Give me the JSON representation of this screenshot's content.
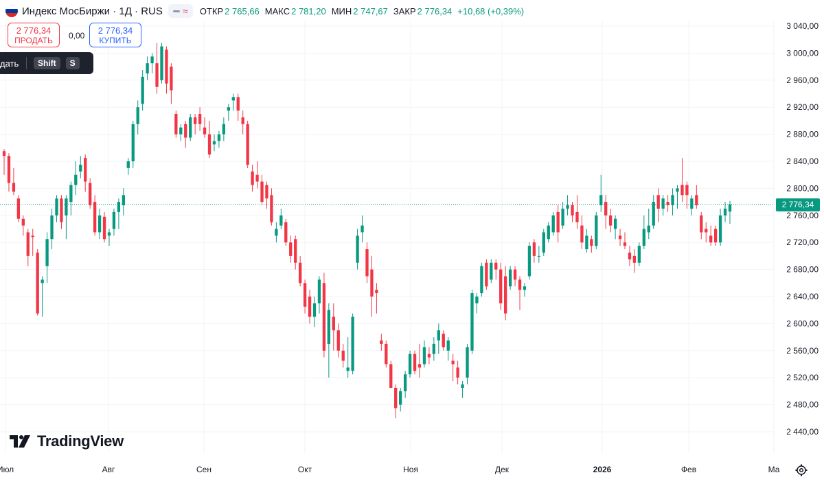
{
  "header": {
    "symbol": "Индекс МосБиржи · 1Д · RUS",
    "open_label": "ОТКР",
    "open_value": "2 765,66",
    "high_label": "МАКС",
    "high_value": "2 781,20",
    "low_label": "МИН",
    "low_value": "2 747,67",
    "close_label": "ЗАКР",
    "close_value": "2 776,34",
    "change": "+10,68 (+0,39%)"
  },
  "trade": {
    "sell_price": "2 776,34",
    "sell_label": "ПРОДАТЬ",
    "spread": "0,00",
    "buy_price": "2 776,34",
    "buy_label": "КУПИТЬ"
  },
  "tooltip": {
    "text": "дать",
    "key1": "Shift",
    "key2": "S"
  },
  "logo_text": "TradingView",
  "last_price_tag": "2 776,34",
  "colors": {
    "up": "#089981",
    "down": "#f23645",
    "grid": "#f0f3fa",
    "axis_text": "#131722",
    "last_price_line": "#089981"
  },
  "icons": [
    "russia-flag-icon",
    "tradingview-logo-icon",
    "settings-gear-icon",
    "chart-style-icon"
  ],
  "chart_data": {
    "type": "candlestick",
    "y_axis_labels": [
      "3 040,00",
      "3 000,00",
      "2 960,00",
      "2 920,00",
      "2 880,00",
      "2 840,00",
      "2 800,00",
      "2 760,00",
      "2 720,00",
      "2 680,00",
      "2 640,00",
      "2 600,00",
      "2 560,00",
      "2 520,00",
      "2 480,00",
      "2 440,00"
    ],
    "y_axis_values": [
      3040,
      3000,
      2960,
      2920,
      2880,
      2840,
      2800,
      2760,
      2720,
      2680,
      2640,
      2600,
      2560,
      2520,
      2480,
      2440
    ],
    "ylim": [
      2400,
      3080
    ],
    "x_axis_labels": [
      "Июл",
      "Авг",
      "Сен",
      "Окт",
      "Ноя",
      "Дек",
      "2026",
      "Фев",
      "Ма"
    ],
    "x_axis_bold": [
      false,
      false,
      false,
      false,
      false,
      false,
      true,
      false,
      false
    ],
    "last_price": 2776.34,
    "candles": [
      {
        "o": 2855,
        "h": 2858,
        "l": 2820,
        "c": 2848
      },
      {
        "o": 2848,
        "h": 2852,
        "l": 2795,
        "c": 2808
      },
      {
        "o": 2808,
        "h": 2830,
        "l": 2790,
        "c": 2795
      },
      {
        "o": 2785,
        "h": 2790,
        "l": 2750,
        "c": 2755
      },
      {
        "o": 2755,
        "h": 2760,
        "l": 2730,
        "c": 2745
      },
      {
        "o": 2735,
        "h": 2740,
        "l": 2685,
        "c": 2700
      },
      {
        "o": 2730,
        "h": 2740,
        "l": 2700,
        "c": 2728
      },
      {
        "o": 2705,
        "h": 2710,
        "l": 2612,
        "c": 2615
      },
      {
        "o": 2660,
        "h": 2670,
        "l": 2610,
        "c": 2665
      },
      {
        "o": 2685,
        "h": 2735,
        "l": 2660,
        "c": 2725
      },
      {
        "o": 2725,
        "h": 2770,
        "l": 2710,
        "c": 2760
      },
      {
        "o": 2760,
        "h": 2790,
        "l": 2750,
        "c": 2785
      },
      {
        "o": 2785,
        "h": 2790,
        "l": 2740,
        "c": 2750
      },
      {
        "o": 2760,
        "h": 2790,
        "l": 2725,
        "c": 2785
      },
      {
        "o": 2780,
        "h": 2810,
        "l": 2760,
        "c": 2805
      },
      {
        "o": 2805,
        "h": 2840,
        "l": 2790,
        "c": 2820
      },
      {
        "o": 2825,
        "h": 2848,
        "l": 2815,
        "c": 2835
      },
      {
        "o": 2845,
        "h": 2850,
        "l": 2795,
        "c": 2810
      },
      {
        "o": 2808,
        "h": 2815,
        "l": 2770,
        "c": 2775
      },
      {
        "o": 2780,
        "h": 2790,
        "l": 2730,
        "c": 2735
      },
      {
        "o": 2735,
        "h": 2770,
        "l": 2725,
        "c": 2760
      },
      {
        "o": 2758,
        "h": 2765,
        "l": 2720,
        "c": 2725
      },
      {
        "o": 2730,
        "h": 2740,
        "l": 2715,
        "c": 2735
      },
      {
        "o": 2740,
        "h": 2770,
        "l": 2730,
        "c": 2765
      },
      {
        "o": 2765,
        "h": 2785,
        "l": 2740,
        "c": 2780
      },
      {
        "o": 2775,
        "h": 2800,
        "l": 2760,
        "c": 2790
      },
      {
        "o": 2830,
        "h": 2845,
        "l": 2820,
        "c": 2840
      },
      {
        "o": 2840,
        "h": 2900,
        "l": 2830,
        "c": 2895
      },
      {
        "o": 2895,
        "h": 2930,
        "l": 2880,
        "c": 2920
      },
      {
        "o": 2925,
        "h": 2975,
        "l": 2915,
        "c": 2965
      },
      {
        "o": 2970,
        "h": 2995,
        "l": 2960,
        "c": 2985
      },
      {
        "o": 2985,
        "h": 3000,
        "l": 2970,
        "c": 2995
      },
      {
        "o": 2985,
        "h": 3015,
        "l": 2940,
        "c": 2950
      },
      {
        "o": 2960,
        "h": 3015,
        "l": 2955,
        "c": 3010
      },
      {
        "o": 3005,
        "h": 3010,
        "l": 2940,
        "c": 2955
      },
      {
        "o": 2980,
        "h": 2985,
        "l": 2925,
        "c": 2945
      },
      {
        "o": 2910,
        "h": 2915,
        "l": 2875,
        "c": 2880
      },
      {
        "o": 2880,
        "h": 2895,
        "l": 2870,
        "c": 2890
      },
      {
        "o": 2895,
        "h": 2900,
        "l": 2860,
        "c": 2875
      },
      {
        "o": 2875,
        "h": 2910,
        "l": 2870,
        "c": 2905
      },
      {
        "o": 2905,
        "h": 2910,
        "l": 2880,
        "c": 2895
      },
      {
        "o": 2910,
        "h": 2920,
        "l": 2885,
        "c": 2895
      },
      {
        "o": 2890,
        "h": 2905,
        "l": 2875,
        "c": 2880
      },
      {
        "o": 2880,
        "h": 2900,
        "l": 2845,
        "c": 2850
      },
      {
        "o": 2865,
        "h": 2880,
        "l": 2855,
        "c": 2870
      },
      {
        "o": 2870,
        "h": 2885,
        "l": 2860,
        "c": 2880
      },
      {
        "o": 2880,
        "h": 2905,
        "l": 2870,
        "c": 2895
      },
      {
        "o": 2915,
        "h": 2925,
        "l": 2900,
        "c": 2920
      },
      {
        "o": 2930,
        "h": 2940,
        "l": 2915,
        "c": 2935
      },
      {
        "o": 2935,
        "h": 2940,
        "l": 2900,
        "c": 2915
      },
      {
        "o": 2905,
        "h": 2915,
        "l": 2880,
        "c": 2895
      },
      {
        "o": 2895,
        "h": 2900,
        "l": 2830,
        "c": 2835
      },
      {
        "o": 2825,
        "h": 2835,
        "l": 2795,
        "c": 2805
      },
      {
        "o": 2820,
        "h": 2840,
        "l": 2800,
        "c": 2810
      },
      {
        "o": 2810,
        "h": 2820,
        "l": 2775,
        "c": 2780
      },
      {
        "o": 2805,
        "h": 2810,
        "l": 2770,
        "c": 2785
      },
      {
        "o": 2790,
        "h": 2800,
        "l": 2745,
        "c": 2750
      },
      {
        "o": 2730,
        "h": 2750,
        "l": 2720,
        "c": 2740
      },
      {
        "o": 2745,
        "h": 2770,
        "l": 2740,
        "c": 2760
      },
      {
        "o": 2750,
        "h": 2755,
        "l": 2715,
        "c": 2720
      },
      {
        "o": 2720,
        "h": 2730,
        "l": 2690,
        "c": 2700
      },
      {
        "o": 2725,
        "h": 2730,
        "l": 2680,
        "c": 2690
      },
      {
        "o": 2690,
        "h": 2700,
        "l": 2655,
        "c": 2660
      },
      {
        "o": 2660,
        "h": 2665,
        "l": 2615,
        "c": 2625
      },
      {
        "o": 2640,
        "h": 2650,
        "l": 2600,
        "c": 2610
      },
      {
        "o": 2610,
        "h": 2640,
        "l": 2595,
        "c": 2630
      },
      {
        "o": 2630,
        "h": 2670,
        "l": 2615,
        "c": 2665
      },
      {
        "o": 2660,
        "h": 2675,
        "l": 2550,
        "c": 2560
      },
      {
        "o": 2570,
        "h": 2630,
        "l": 2520,
        "c": 2620
      },
      {
        "o": 2610,
        "h": 2630,
        "l": 2560,
        "c": 2590
      },
      {
        "o": 2590,
        "h": 2600,
        "l": 2550,
        "c": 2560
      },
      {
        "o": 2560,
        "h": 2570,
        "l": 2535,
        "c": 2545
      },
      {
        "o": 2530,
        "h": 2580,
        "l": 2520,
        "c": 2535
      },
      {
        "o": 2530,
        "h": 2615,
        "l": 2525,
        "c": 2610
      },
      {
        "o": 2690,
        "h": 2740,
        "l": 2680,
        "c": 2730
      },
      {
        "o": 2735,
        "h": 2760,
        "l": 2720,
        "c": 2745
      },
      {
        "o": 2710,
        "h": 2720,
        "l": 2660,
        "c": 2670
      },
      {
        "o": 2680,
        "h": 2700,
        "l": 2610,
        "c": 2640
      },
      {
        "o": 2650,
        "h": 2660,
        "l": 2615,
        "c": 2645
      },
      {
        "o": 2575,
        "h": 2585,
        "l": 2560,
        "c": 2570
      },
      {
        "o": 2570,
        "h": 2575,
        "l": 2535,
        "c": 2540
      },
      {
        "o": 2540,
        "h": 2545,
        "l": 2510,
        "c": 2505
      },
      {
        "o": 2505,
        "h": 2510,
        "l": 2460,
        "c": 2475
      },
      {
        "o": 2480,
        "h": 2505,
        "l": 2470,
        "c": 2500
      },
      {
        "o": 2500,
        "h": 2530,
        "l": 2490,
        "c": 2525
      },
      {
        "o": 2525,
        "h": 2560,
        "l": 2520,
        "c": 2555
      },
      {
        "o": 2555,
        "h": 2560,
        "l": 2525,
        "c": 2530
      },
      {
        "o": 2540,
        "h": 2570,
        "l": 2520,
        "c": 2535
      },
      {
        "o": 2540,
        "h": 2575,
        "l": 2535,
        "c": 2565
      },
      {
        "o": 2555,
        "h": 2565,
        "l": 2540,
        "c": 2550
      },
      {
        "o": 2555,
        "h": 2580,
        "l": 2545,
        "c": 2570
      },
      {
        "o": 2575,
        "h": 2600,
        "l": 2555,
        "c": 2590
      },
      {
        "o": 2585,
        "h": 2590,
        "l": 2560,
        "c": 2565
      },
      {
        "o": 2560,
        "h": 2580,
        "l": 2545,
        "c": 2575
      },
      {
        "o": 2545,
        "h": 2555,
        "l": 2515,
        "c": 2540
      },
      {
        "o": 2535,
        "h": 2545,
        "l": 2510,
        "c": 2520
      },
      {
        "o": 2505,
        "h": 2515,
        "l": 2490,
        "c": 2510
      },
      {
        "o": 2520,
        "h": 2570,
        "l": 2510,
        "c": 2565
      },
      {
        "o": 2560,
        "h": 2650,
        "l": 2555,
        "c": 2645
      },
      {
        "o": 2630,
        "h": 2645,
        "l": 2615,
        "c": 2640
      },
      {
        "o": 2645,
        "h": 2690,
        "l": 2640,
        "c": 2685
      },
      {
        "o": 2690,
        "h": 2695,
        "l": 2650,
        "c": 2655
      },
      {
        "o": 2665,
        "h": 2695,
        "l": 2660,
        "c": 2690
      },
      {
        "o": 2690,
        "h": 2695,
        "l": 2665,
        "c": 2680
      },
      {
        "o": 2680,
        "h": 2690,
        "l": 2620,
        "c": 2630
      },
      {
        "o": 2670,
        "h": 2685,
        "l": 2605,
        "c": 2615
      },
      {
        "o": 2655,
        "h": 2685,
        "l": 2650,
        "c": 2680
      },
      {
        "o": 2680,
        "h": 2685,
        "l": 2655,
        "c": 2665
      },
      {
        "o": 2665,
        "h": 2670,
        "l": 2620,
        "c": 2650
      },
      {
        "o": 2650,
        "h": 2660,
        "l": 2640,
        "c": 2655
      },
      {
        "o": 2670,
        "h": 2720,
        "l": 2665,
        "c": 2715
      },
      {
        "o": 2720,
        "h": 2725,
        "l": 2690,
        "c": 2700
      },
      {
        "o": 2700,
        "h": 2715,
        "l": 2690,
        "c": 2700
      },
      {
        "o": 2705,
        "h": 2740,
        "l": 2700,
        "c": 2735
      },
      {
        "o": 2725,
        "h": 2750,
        "l": 2720,
        "c": 2745
      },
      {
        "o": 2735,
        "h": 2765,
        "l": 2730,
        "c": 2760
      },
      {
        "o": 2765,
        "h": 2775,
        "l": 2720,
        "c": 2735
      },
      {
        "o": 2745,
        "h": 2780,
        "l": 2740,
        "c": 2770
      },
      {
        "o": 2770,
        "h": 2790,
        "l": 2760,
        "c": 2775
      },
      {
        "o": 2775,
        "h": 2780,
        "l": 2750,
        "c": 2760
      },
      {
        "o": 2765,
        "h": 2790,
        "l": 2740,
        "c": 2750
      },
      {
        "o": 2745,
        "h": 2760,
        "l": 2710,
        "c": 2720
      },
      {
        "o": 2710,
        "h": 2740,
        "l": 2705,
        "c": 2730
      },
      {
        "o": 2725,
        "h": 2730,
        "l": 2705,
        "c": 2715
      },
      {
        "o": 2715,
        "h": 2765,
        "l": 2710,
        "c": 2760
      },
      {
        "o": 2775,
        "h": 2820,
        "l": 2765,
        "c": 2790
      },
      {
        "o": 2780,
        "h": 2790,
        "l": 2740,
        "c": 2760
      },
      {
        "o": 2760,
        "h": 2770,
        "l": 2735,
        "c": 2745
      },
      {
        "o": 2740,
        "h": 2760,
        "l": 2725,
        "c": 2755
      },
      {
        "o": 2730,
        "h": 2740,
        "l": 2715,
        "c": 2725
      },
      {
        "o": 2720,
        "h": 2735,
        "l": 2710,
        "c": 2715
      },
      {
        "o": 2705,
        "h": 2715,
        "l": 2685,
        "c": 2695
      },
      {
        "o": 2700,
        "h": 2710,
        "l": 2675,
        "c": 2690
      },
      {
        "o": 2690,
        "h": 2720,
        "l": 2685,
        "c": 2715
      },
      {
        "o": 2715,
        "h": 2760,
        "l": 2710,
        "c": 2740
      },
      {
        "o": 2735,
        "h": 2770,
        "l": 2725,
        "c": 2745
      },
      {
        "o": 2745,
        "h": 2790,
        "l": 2740,
        "c": 2780
      },
      {
        "o": 2790,
        "h": 2800,
        "l": 2750,
        "c": 2770
      },
      {
        "o": 2770,
        "h": 2790,
        "l": 2760,
        "c": 2785
      },
      {
        "o": 2780,
        "h": 2790,
        "l": 2765,
        "c": 2775
      },
      {
        "o": 2775,
        "h": 2800,
        "l": 2760,
        "c": 2790
      },
      {
        "o": 2795,
        "h": 2805,
        "l": 2770,
        "c": 2800
      },
      {
        "o": 2805,
        "h": 2845,
        "l": 2780,
        "c": 2790
      },
      {
        "o": 2805,
        "h": 2810,
        "l": 2770,
        "c": 2790
      },
      {
        "o": 2770,
        "h": 2790,
        "l": 2760,
        "c": 2785
      },
      {
        "o": 2790,
        "h": 2805,
        "l": 2770,
        "c": 2775
      },
      {
        "o": 2760,
        "h": 2765,
        "l": 2725,
        "c": 2735
      },
      {
        "o": 2740,
        "h": 2750,
        "l": 2720,
        "c": 2735
      },
      {
        "o": 2730,
        "h": 2745,
        "l": 2715,
        "c": 2720
      },
      {
        "o": 2740,
        "h": 2745,
        "l": 2715,
        "c": 2720
      },
      {
        "o": 2720,
        "h": 2770,
        "l": 2715,
        "c": 2760
      },
      {
        "o": 2760,
        "h": 2780,
        "l": 2750,
        "c": 2770
      },
      {
        "o": 2765.66,
        "h": 2781.2,
        "l": 2747.67,
        "c": 2776.34
      }
    ]
  }
}
